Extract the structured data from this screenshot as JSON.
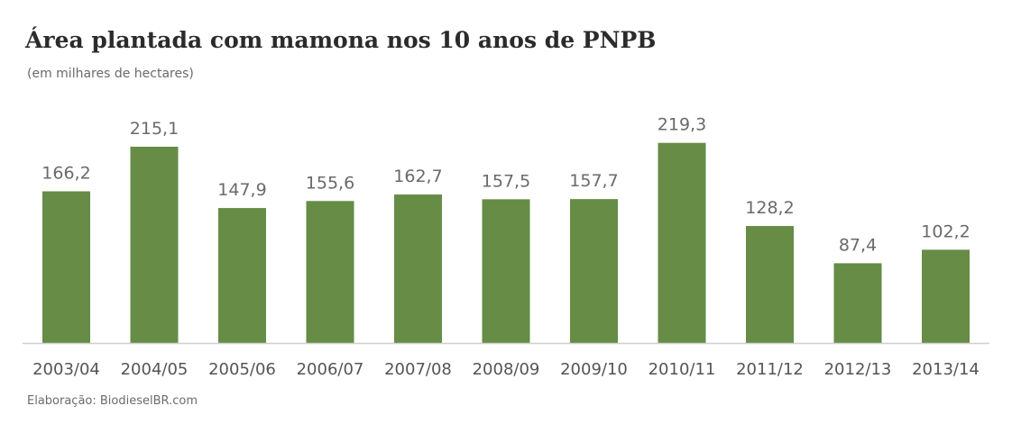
{
  "header": {
    "title": "Área plantada com mamona nos 10 anos de PNPB",
    "subtitle": "(em milhares de hectares)"
  },
  "footer": {
    "source": "Elaboração: BiodieselBR.com"
  },
  "colors": {
    "bar": "#668c46",
    "axis": "#d0d0d0"
  },
  "chart_data": {
    "type": "bar",
    "title": "Área plantada com mamona nos 10 anos de PNPB",
    "subtitle": "(em milhares de hectares)",
    "categories": [
      "2003/04",
      "2004/05",
      "2005/06",
      "2006/07",
      "2007/08",
      "2008/09",
      "2009/10",
      "2010/11",
      "2011/12",
      "2012/13",
      "2013/14"
    ],
    "values": [
      166.2,
      215.1,
      147.9,
      155.6,
      162.7,
      157.5,
      157.7,
      219.3,
      128.2,
      87.4,
      102.2
    ],
    "value_labels": [
      "166,2",
      "215,1",
      "147,9",
      "155,6",
      "162,7",
      "157,5",
      "157,7",
      "219,3",
      "128,2",
      "87,4",
      "102,2"
    ],
    "xlabel": "",
    "ylabel": "",
    "ylim": [
      0,
      220
    ],
    "grid": false,
    "legend": "none"
  }
}
